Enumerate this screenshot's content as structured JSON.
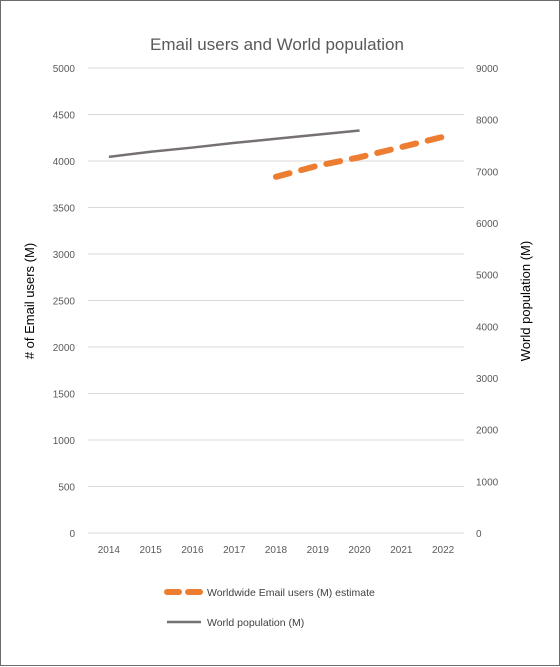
{
  "chart_data": {
    "type": "line",
    "title": "Email users and World population",
    "x": [
      "2014",
      "2015",
      "2016",
      "2017",
      "2018",
      "2019",
      "2020",
      "2021",
      "2022"
    ],
    "y_left": {
      "label": "# of Email users (M)",
      "ylim": [
        0,
        5000
      ],
      "ticks": [
        "0",
        "500",
        "1000",
        "1500",
        "2000",
        "2500",
        "3000",
        "3500",
        "4000",
        "4500",
        "5000"
      ]
    },
    "y_right": {
      "label": "World population  (M)",
      "ylim": [
        0,
        9000
      ],
      "ticks": [
        "0",
        "1000",
        "2000",
        "3000",
        "4000",
        "5000",
        "6000",
        "7000",
        "8000",
        "9000"
      ]
    },
    "series": [
      {
        "name": "Worldwide Email users (M) estimate",
        "axis": "left",
        "color": "#ed7d31",
        "style": "dashed",
        "x": [
          "2018",
          "2019",
          "2020",
          "2021",
          "2022"
        ],
        "values": [
          3830,
          3950,
          4040,
          4150,
          4260
        ]
      },
      {
        "name": "World population (M)",
        "axis": "right",
        "color": "#767171",
        "style": "solid",
        "x": [
          "2014",
          "2015",
          "2016",
          "2017",
          "2018",
          "2019",
          "2020"
        ],
        "values": [
          7280,
          7380,
          7460,
          7550,
          7630,
          7710,
          7790
        ]
      }
    ],
    "grid": true,
    "legend_position": "bottom"
  }
}
